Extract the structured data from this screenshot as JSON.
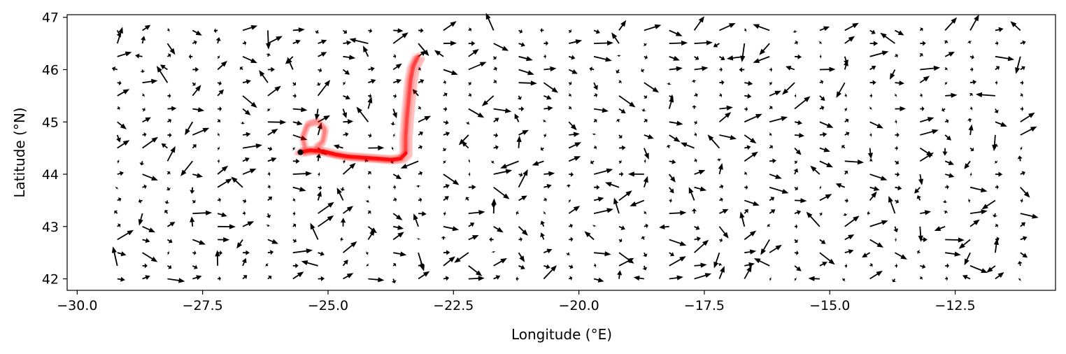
{
  "chart_data": {
    "type": "quiver",
    "title": "",
    "xlabel": "Longitude (°E)",
    "ylabel": "Latitude (°N)",
    "xlim": [
      -30.2,
      -10.5
    ],
    "ylim": [
      41.78,
      47.05
    ],
    "xticks": [
      -30.0,
      -27.5,
      -25.0,
      -22.5,
      -20.0,
      -17.5,
      -15.0,
      -12.5
    ],
    "xtick_labels": [
      "−30.0",
      "−27.5",
      "−25.0",
      "−22.5",
      "−20.0",
      "−17.5",
      "−15.0",
      "−12.5"
    ],
    "yticks": [
      42,
      43,
      44,
      45,
      46,
      47
    ],
    "ytick_labels": [
      "42",
      "43",
      "44",
      "45",
      "46",
      "47"
    ],
    "grid": false,
    "legend": "none",
    "colors": {
      "vectors": "#000000",
      "trajectory": "#ff0000",
      "start_point": "#000000"
    },
    "vector_field": {
      "lon_start": -29.2,
      "lon_step": 0.5,
      "lon_count": 37,
      "lat_start": 42.0,
      "lat_step": 0.25,
      "lat_count": 20
    },
    "trajectory": {
      "start": [
        -25.55,
        44.42
      ],
      "path": [
        [
          -25.55,
          44.42
        ],
        [
          -25.35,
          44.46
        ],
        [
          -25.1,
          44.44
        ],
        [
          -24.85,
          44.38
        ],
        [
          -24.6,
          44.34
        ],
        [
          -24.3,
          44.32
        ],
        [
          -24.0,
          44.3
        ],
        [
          -23.75,
          44.28
        ],
        [
          -23.55,
          44.3
        ],
        [
          -23.45,
          44.4
        ],
        [
          -23.45,
          44.7
        ],
        [
          -23.42,
          45.1
        ],
        [
          -23.38,
          45.5
        ],
        [
          -23.35,
          45.8
        ],
        [
          -23.3,
          46.05
        ],
        [
          -23.2,
          46.25
        ]
      ],
      "loop": [
        [
          -25.45,
          44.48
        ],
        [
          -25.5,
          44.7
        ],
        [
          -25.4,
          44.95
        ],
        [
          -25.2,
          45.0
        ],
        [
          -25.05,
          44.85
        ],
        [
          -25.1,
          44.6
        ],
        [
          -25.25,
          44.5
        ]
      ]
    }
  }
}
